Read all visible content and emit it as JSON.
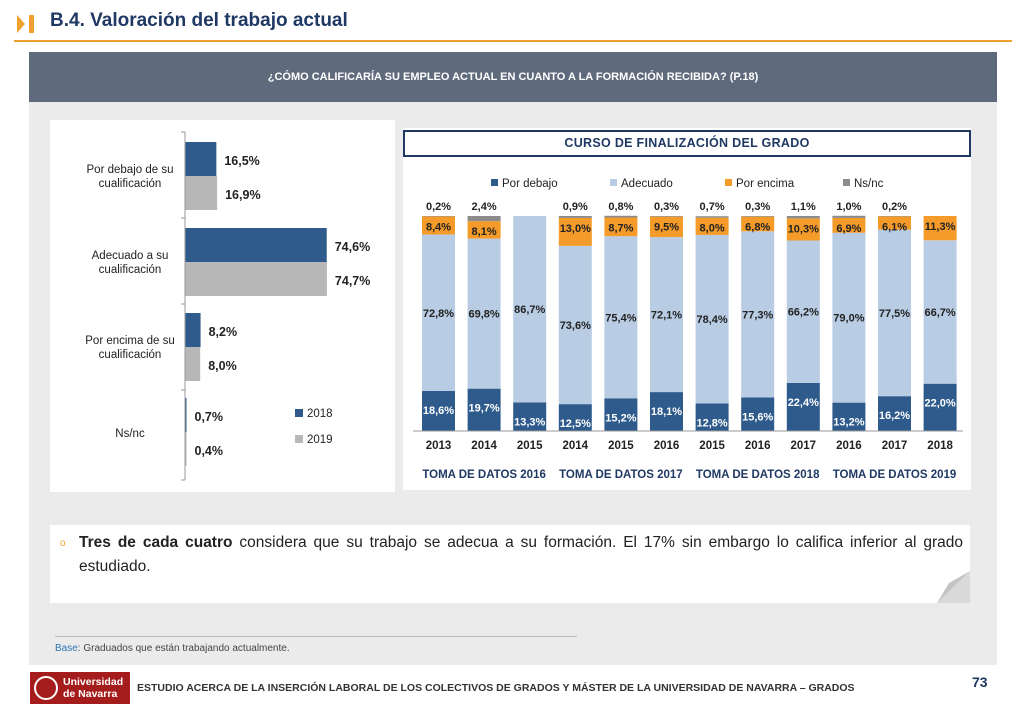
{
  "header": {
    "title": "B.4. Valoración del trabajo actual"
  },
  "question": "¿CÓMO CALIFICARÍA SU EMPLEO ACTUAL EN CUANTO A LA FORMACIÓN RECIBIDA? (P.18)",
  "colors": {
    "accent": "#f0a030",
    "navy": "#1f3864",
    "series2018": "#2f5b8c",
    "series2019": "#b7b7b7",
    "por_debajo": "#2f5b8c",
    "adecuado": "#b8cce4",
    "por_encima": "#f49b2a",
    "nsnc": "#8c8c8c"
  },
  "chart_data": [
    {
      "type": "bar",
      "orientation": "horizontal",
      "categories": [
        "Por debajo de su cualificación",
        "Adecuado a su cualificación",
        "Por encima de su cualificación",
        "Ns/nc"
      ],
      "series": [
        {
          "name": "2018",
          "values": [
            16.5,
            74.6,
            8.2,
            0.7
          ],
          "labels": [
            "16,5%",
            "74,6%",
            "8,2%",
            "0,7%"
          ]
        },
        {
          "name": "2019",
          "values": [
            16.9,
            74.7,
            8.0,
            0.4
          ],
          "labels": [
            "16,9%",
            "74,7%",
            "8,0%",
            "0,4%"
          ]
        }
      ],
      "legend": "bottom-right",
      "xlim": [
        0,
        100
      ]
    },
    {
      "type": "bar",
      "stacked": true,
      "title": "CURSO DE FINALIZACIÓN DEL GRADO",
      "legend": "top",
      "legend_entries": [
        "Por debajo",
        "Adecuado",
        "Por encima",
        "Ns/nc"
      ],
      "groups": [
        "TOMA DE DATOS 2016",
        "TOMA DE DATOS 2017",
        "TOMA DE DATOS 2018",
        "TOMA DE DATOS 2019"
      ],
      "categories": [
        "2013",
        "2014",
        "2015",
        "2014",
        "2015",
        "2016",
        "2015",
        "2016",
        "2017",
        "2016",
        "2017",
        "2018"
      ],
      "series": [
        {
          "name": "Por debajo",
          "values": [
            18.6,
            19.7,
            13.3,
            12.5,
            15.2,
            18.1,
            12.8,
            15.6,
            22.4,
            13.2,
            16.2,
            22.0
          ],
          "labels": [
            "18,6%",
            "19,7%",
            "13,3%",
            "12,5%",
            "15,2%",
            "18,1%",
            "12,8%",
            "15,6%",
            "22,4%",
            "13,2%",
            "16,2%",
            "22,0%"
          ]
        },
        {
          "name": "Adecuado",
          "values": [
            72.8,
            69.8,
            86.7,
            73.6,
            75.4,
            72.1,
            78.4,
            77.3,
            66.2,
            79.0,
            77.5,
            66.7
          ],
          "labels": [
            "72,8%",
            "69,8%",
            "86,7%",
            "73,6%",
            "75,4%",
            "72,1%",
            "78,4%",
            "77,3%",
            "66,2%",
            "79,0%",
            "77,5%",
            "66,7%"
          ]
        },
        {
          "name": "Por encima",
          "values": [
            8.4,
            8.1,
            0,
            13.0,
            8.7,
            9.5,
            8.0,
            6.8,
            10.3,
            6.9,
            6.1,
            11.3
          ],
          "labels": [
            "8,4%",
            "8,1%",
            "",
            "13,0%",
            "8,7%",
            "9,5%",
            "8,0%",
            "6,8%",
            "10,3%",
            "6,9%",
            "6,1%",
            "11,3%"
          ]
        },
        {
          "name": "Ns/nc",
          "values": [
            0.2,
            2.4,
            0,
            0.9,
            0.8,
            0.3,
            0.7,
            0.3,
            1.1,
            1.0,
            0.2,
            0
          ],
          "labels": [
            "0,2%",
            "2,4%",
            "",
            "0,9%",
            "0,8%",
            "0,3%",
            "0,7%",
            "0,3%",
            "1,1%",
            "1,0%",
            "0,2%",
            ""
          ]
        }
      ],
      "ylim": [
        0,
        100
      ]
    }
  ],
  "note": {
    "bullet": "o",
    "bold": "Tres de cada cuatro",
    "text": " considera que su trabajo se adecua a su formación. El 17% sin embargo lo califica inferior al grado estudiado."
  },
  "base": {
    "label": "Base",
    "text": ": Graduados que están trabajando actualmente."
  },
  "footer": {
    "logo_line1": "Universidad",
    "logo_line2": "de Navarra",
    "text": "ESTUDIO ACERCA DE LA INSERCIÓN LABORAL DE LOS COLECTIVOS DE GRADOS Y MÁSTER DE LA UNIVERSIDAD DE NAVARRA – GRADOS",
    "page": "73"
  }
}
